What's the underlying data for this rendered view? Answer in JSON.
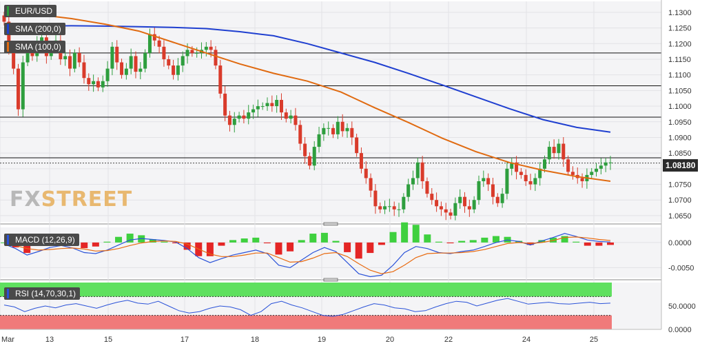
{
  "labels": {
    "symbol": "EUR/USD",
    "sma200": "SMA (200,0)",
    "sma100": "SMA (100,0)",
    "macd": "MACD (12,26,9)",
    "rsi": "RSI (14,70,30,1)",
    "last_price": "1.08180",
    "watermark_fx": "FX",
    "watermark_street": "STREET"
  },
  "colors": {
    "bull": "#2e9e3e",
    "bear": "#d93b2b",
    "sma200": "#1f3fd0",
    "sma100": "#e06a10",
    "macd_line": "#2a52d8",
    "signal_line": "#e86a10",
    "hist_pos": "#3fd03f",
    "hist_neg": "#e42525",
    "rsi_line": "#2a52d8",
    "rsi_over": "#5fe05f",
    "rsi_under": "#f07a7a",
    "watermark": "#e8b870"
  },
  "chart_data": [
    {
      "type": "candlestick",
      "title": "EUR/USD",
      "x_ticks": [
        "Mar",
        "13",
        "15",
        "17",
        "18",
        "19",
        "20",
        "22",
        "24",
        "25"
      ],
      "y_ticks": [
        "1.1300",
        "1.1250",
        "1.1200",
        "1.1150",
        "1.1100",
        "1.1050",
        "1.1000",
        "1.0950",
        "1.0900",
        "1.0850",
        "1.0800",
        "1.0750",
        "1.0700",
        "1.0650"
      ],
      "ylim": [
        1.063,
        1.1335
      ],
      "horizontal_levels": [
        1.117,
        1.1065,
        1.0965,
        1.0835
      ],
      "last_price": 1.0818,
      "candles_close": [
        1.127,
        1.118,
        1.112,
        1.099,
        1.114,
        1.118,
        1.116,
        1.12,
        1.122,
        1.116,
        1.119,
        1.121,
        1.115,
        1.116,
        1.112,
        1.117,
        1.114,
        1.109,
        1.107,
        1.108,
        1.106,
        1.108,
        1.112,
        1.119,
        1.114,
        1.11,
        1.112,
        1.116,
        1.111,
        1.112,
        1.117,
        1.123,
        1.121,
        1.119,
        1.115,
        1.113,
        1.11,
        1.113,
        1.116,
        1.118,
        1.117,
        1.117,
        1.118,
        1.119,
        1.118,
        1.113,
        1.104,
        1.097,
        1.094,
        1.096,
        1.097,
        1.096,
        1.098,
        1.099,
        1.1,
        1.1,
        1.101,
        1.1,
        1.102,
        1.098,
        1.096,
        1.097,
        1.094,
        1.088,
        1.084,
        1.081,
        1.087,
        1.091,
        1.093,
        1.093,
        1.091,
        1.095,
        1.092,
        1.093,
        1.09,
        1.085,
        1.08,
        1.077,
        1.073,
        1.068,
        1.067,
        1.068,
        1.068,
        1.067,
        1.067,
        1.071,
        1.075,
        1.077,
        1.082,
        1.076,
        1.072,
        1.07,
        1.068,
        1.067,
        1.066,
        1.065,
        1.069,
        1.071,
        1.068,
        1.067,
        1.07,
        1.076,
        1.077,
        1.075,
        1.071,
        1.069,
        1.072,
        1.08,
        1.082,
        1.079,
        1.078,
        1.076,
        1.075,
        1.077,
        1.08,
        1.083,
        1.087,
        1.085,
        1.088,
        1.083,
        1.079,
        1.078,
        1.077,
        1.076,
        1.078,
        1.079,
        1.08,
        1.081,
        1.082,
        1.082
      ],
      "series": [
        {
          "name": "SMA (200,0)",
          "values": [
            1.1255,
            1.1256,
            1.1257,
            1.1256,
            1.1254,
            1.1252,
            1.1248,
            1.1238,
            1.1225,
            1.12,
            1.117,
            1.114,
            1.1105,
            1.1068,
            1.103,
            1.0992,
            1.0957,
            1.0932,
            1.0917
          ]
        },
        {
          "name": "SMA (100,0)",
          "values": [
            1.13,
            1.1293,
            1.128,
            1.1262,
            1.124,
            1.1205,
            1.117,
            1.1135,
            1.1105,
            1.108,
            1.1045,
            1.0995,
            1.0948,
            1.0898,
            1.0855,
            1.082,
            1.0795,
            1.0775,
            1.076
          ]
        }
      ]
    },
    {
      "type": "macd",
      "title": "MACD (12,26,9)",
      "y_ticks": [
        "0.0000",
        "-0.0050"
      ],
      "ylim": [
        -0.007,
        0.003
      ],
      "macd": [
        -0.0003,
        -0.0012,
        -0.0025,
        -0.0018,
        -0.001,
        -0.0006,
        -0.0011,
        -0.002,
        -0.0022,
        -0.0015,
        -0.0005,
        0.0005,
        0.0008,
        0.0006,
        0.0004,
        0.0001,
        -0.0012,
        -0.003,
        -0.004,
        -0.0032,
        -0.0025,
        -0.002,
        -0.0015,
        -0.0022,
        -0.0045,
        -0.005,
        -0.0035,
        -0.002,
        -0.001,
        -0.0018,
        -0.004,
        -0.0062,
        -0.0068,
        -0.0065,
        -0.0045,
        -0.002,
        -0.0008,
        -0.0012,
        -0.002,
        -0.0022,
        -0.0018,
        -0.0015,
        -0.0008,
        0.0,
        0.0005,
        0.0002,
        -0.0005,
        0.0003,
        0.001,
        0.0018,
        0.0012,
        0.0005,
        0.0002,
        0.0001
      ],
      "signal": [
        -0.0003,
        -0.0006,
        -0.0012,
        -0.0015,
        -0.0014,
        -0.0012,
        -0.0011,
        -0.0013,
        -0.0017,
        -0.0016,
        -0.0012,
        -0.0006,
        -0.0001,
        0.0002,
        0.0003,
        0.0002,
        -0.0003,
        -0.0013,
        -0.0023,
        -0.0028,
        -0.0028,
        -0.0025,
        -0.0021,
        -0.0021,
        -0.003,
        -0.0039,
        -0.0038,
        -0.0031,
        -0.0022,
        -0.002,
        -0.0028,
        -0.0042,
        -0.0055,
        -0.0062,
        -0.0058,
        -0.0045,
        -0.003,
        -0.0022,
        -0.0021,
        -0.0021,
        -0.002,
        -0.0018,
        -0.0014,
        -0.0008,
        -0.0002,
        0.0,
        -0.0002,
        0.0,
        0.0004,
        0.001,
        0.0011,
        0.0009,
        0.0006,
        0.0004
      ]
    },
    {
      "type": "rsi",
      "title": "RSI (14,70,30,1)",
      "y_ticks": [
        "50.0000",
        "0.0000"
      ],
      "ylim": [
        0,
        100
      ],
      "levels": [
        70,
        30
      ],
      "values": [
        52,
        48,
        38,
        45,
        50,
        46,
        52,
        55,
        50,
        45,
        52,
        58,
        62,
        56,
        54,
        60,
        50,
        40,
        35,
        38,
        45,
        50,
        48,
        42,
        30,
        38,
        55,
        60,
        52,
        46,
        38,
        30,
        28,
        32,
        40,
        48,
        55,
        52,
        46,
        44,
        38,
        40,
        48,
        55,
        60,
        58,
        50,
        56,
        62,
        66,
        60,
        54,
        56,
        58,
        55,
        54,
        56,
        58,
        55,
        56
      ]
    }
  ]
}
